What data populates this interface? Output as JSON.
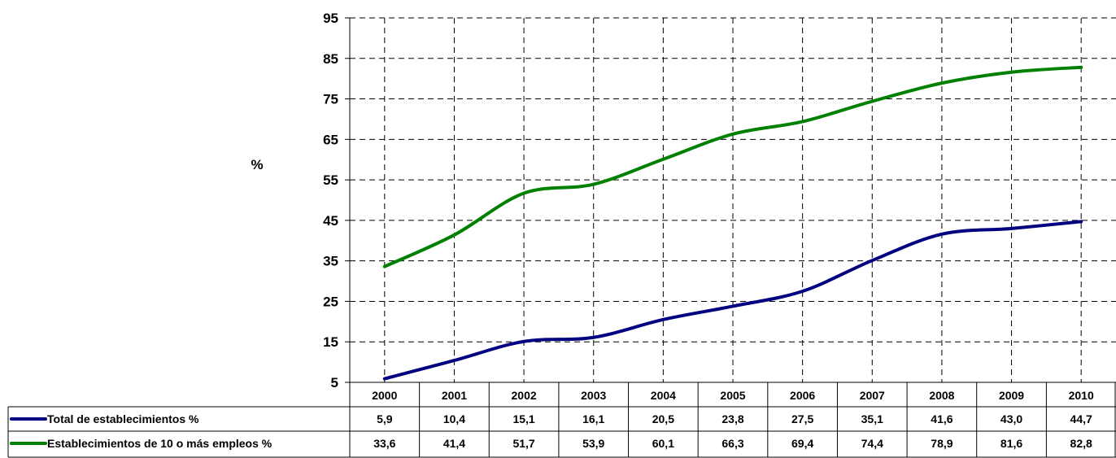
{
  "chart_data": {
    "type": "line",
    "ylabel": "%",
    "ylim": [
      5,
      95
    ],
    "yticks": [
      "95",
      "85",
      "75",
      "65",
      "55",
      "45",
      "35",
      "25",
      "15",
      "5"
    ],
    "ytick_values": [
      95,
      85,
      75,
      65,
      55,
      45,
      35,
      25,
      15,
      5
    ],
    "grid": true,
    "legend": "data-table-below",
    "categories": [
      "2000",
      "2001",
      "2002",
      "2003",
      "2004",
      "2005",
      "2006",
      "2007",
      "2008",
      "2009",
      "2010"
    ],
    "series": [
      {
        "name": "Total de establecimientos %",
        "color": "#000080",
        "values": [
          5.9,
          10.4,
          15.1,
          16.1,
          20.5,
          23.8,
          27.5,
          35.1,
          41.6,
          43.0,
          44.7
        ],
        "labels": [
          "5,9",
          "10,4",
          "15,1",
          "16,1",
          "20,5",
          "23,8",
          "27,5",
          "35,1",
          "41,6",
          "43,0",
          "44,7"
        ]
      },
      {
        "name": "Establecimientos de 10 o más empleos %",
        "color": "#008000",
        "values": [
          33.6,
          41.4,
          51.7,
          53.9,
          60.1,
          66.3,
          69.4,
          74.4,
          78.9,
          81.6,
          82.8
        ],
        "labels": [
          "33,6",
          "41,4",
          "51,7",
          "53,9",
          "60,1",
          "66,3",
          "69,4",
          "74,4",
          "78,9",
          "81,6",
          "82,8"
        ]
      }
    ]
  }
}
